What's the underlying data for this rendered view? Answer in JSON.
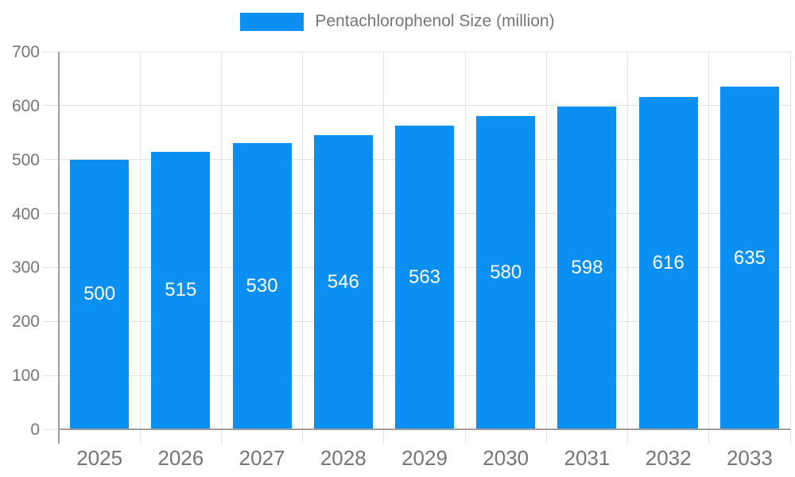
{
  "chart_data": {
    "type": "bar",
    "title": "",
    "legend": "Pentachlorophenol Size (million)",
    "legend_position": "top",
    "categories": [
      "2025",
      "2026",
      "2027",
      "2028",
      "2029",
      "2030",
      "2031",
      "2032",
      "2033"
    ],
    "values": [
      500,
      515,
      530,
      546,
      563,
      580,
      598,
      616,
      635
    ],
    "xlabel": "",
    "ylabel": "",
    "ylim": [
      0,
      700
    ],
    "ytick_step": 100,
    "grid": true,
    "colors": {
      "bar": "#0a90f2",
      "value_label": "#ffffff",
      "axis": "#9e9e9e",
      "grid": "#e3e3e3",
      "tick_label": "#757575"
    }
  }
}
